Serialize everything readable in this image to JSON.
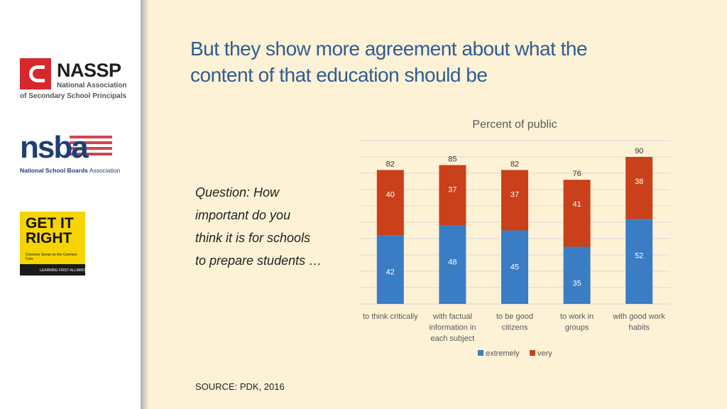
{
  "slide": {
    "title_line1": "But they show more agreement about what the",
    "title_line2": "content of that education should be",
    "question_lines": [
      "Question: How",
      "important do you",
      "think it is for schools",
      "to prepare students …"
    ],
    "source": "SOURCE: PDK, 2016"
  },
  "logos": {
    "nassp": {
      "name": "NASSP",
      "line1": "National Association",
      "line2": "of Secondary School Principals"
    },
    "nsba": {
      "word": "nsba",
      "sub_bold": "National School Boards",
      "sub_rest": " Association"
    },
    "gir": {
      "line1": "GET IT",
      "line2": "RIGHT",
      "tagline": "Common Sense on the Common Core",
      "band": "LEARNING FIRST ALLIANCE"
    }
  },
  "colors": {
    "extremely": "#3b7dc4",
    "very": "#c9401a",
    "grid": "#d9d9d9",
    "text": "#595959"
  },
  "chart_data": {
    "type": "bar",
    "stacked": true,
    "title": "Percent of public",
    "categories": [
      [
        "to think critically"
      ],
      [
        "with factual",
        "information in",
        "each subject"
      ],
      [
        "to be good",
        "citizens"
      ],
      [
        "to work in",
        "groups"
      ],
      [
        "with good work",
        "habits"
      ]
    ],
    "series": [
      {
        "name": "extremely",
        "values": [
          42,
          48,
          45,
          35,
          52
        ]
      },
      {
        "name": "very",
        "values": [
          40,
          37,
          37,
          41,
          38
        ]
      }
    ],
    "totals": [
      82,
      85,
      82,
      76,
      90
    ],
    "ylim": [
      0,
      100
    ],
    "grid": true,
    "legend": "bottom"
  }
}
